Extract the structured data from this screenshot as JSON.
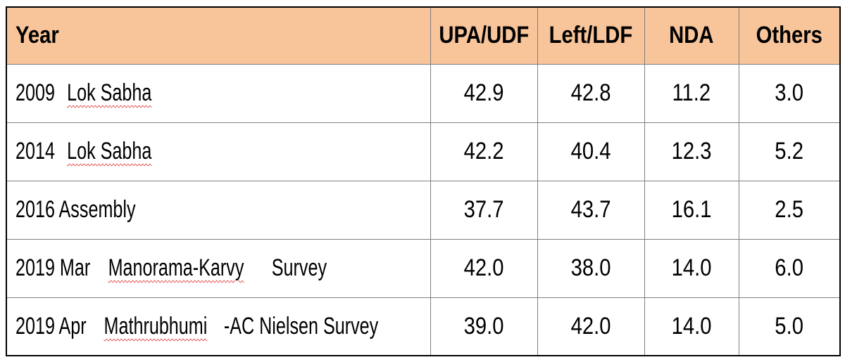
{
  "table": {
    "headers": [
      "Year",
      "UPA/UDF",
      "Left/LDF",
      "NDA",
      "Others"
    ],
    "rows": [
      {
        "year_prefix": "2009",
        "year_marked": "Lok Sabha",
        "year_suffix": "",
        "values": [
          "42.9",
          "42.8",
          "11.2",
          "3.0"
        ]
      },
      {
        "year_prefix": "2014",
        "year_marked": "Lok Sabha",
        "year_suffix": "",
        "values": [
          "42.2",
          "40.4",
          "12.3",
          "5.2"
        ]
      },
      {
        "year_prefix": "2016 Assembly",
        "year_marked": "",
        "year_suffix": "",
        "values": [
          "37.7",
          "43.7",
          "16.1",
          "2.5"
        ]
      },
      {
        "year_prefix": "2019 Mar",
        "year_marked": "Manorama-Karvy",
        "year_suffix": "Survey",
        "values": [
          "42.0",
          "38.0",
          "14.0",
          "6.0"
        ]
      },
      {
        "year_prefix": "2019 Apr",
        "year_marked": "Mathrubhumi",
        "year_suffix": "-AC Nielsen Survey",
        "values": [
          "39.0",
          "42.0",
          "14.0",
          "5.0"
        ]
      }
    ]
  },
  "colors": {
    "header_background": "#f8c49a",
    "border": "#7f7f7f",
    "spellcheck_underline": "#e23b3b"
  }
}
